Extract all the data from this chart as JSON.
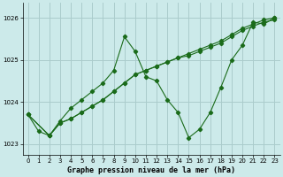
{
  "background_color": "#cceaea",
  "grid_color": "#aacccc",
  "line_color": "#1a6b1a",
  "title": "Graphe pression niveau de la mer (hPa)",
  "xlim": [
    -0.5,
    23.5
  ],
  "ylim": [
    1022.75,
    1026.35
  ],
  "yticks": [
    1023,
    1024,
    1025,
    1026
  ],
  "xticks": [
    0,
    1,
    2,
    3,
    4,
    5,
    6,
    7,
    8,
    9,
    10,
    11,
    12,
    13,
    14,
    15,
    16,
    17,
    18,
    19,
    20,
    21,
    22,
    23
  ],
  "series_zigzag_x": [
    0,
    1,
    2,
    3,
    4,
    5,
    6,
    7,
    8,
    9,
    10,
    11,
    12,
    13,
    14,
    15,
    16,
    17,
    18,
    19,
    20,
    21,
    22,
    23
  ],
  "series_zigzag_y": [
    1023.7,
    1023.3,
    1023.2,
    1023.55,
    1023.85,
    1024.05,
    1024.25,
    1024.45,
    1024.75,
    1025.55,
    1025.2,
    1024.6,
    1024.5,
    1024.05,
    1023.75,
    1023.15,
    1023.35,
    1023.75,
    1024.35,
    1025.0,
    1025.35,
    1025.9,
    1025.85,
    1026.0
  ],
  "series_line1_x": [
    0,
    2,
    3,
    4,
    5,
    6,
    7,
    8,
    9,
    10,
    11,
    12,
    13,
    14,
    15,
    16,
    17,
    18,
    19,
    20,
    21,
    22,
    23
  ],
  "series_line1_y": [
    1023.7,
    1023.2,
    1023.5,
    1023.6,
    1023.75,
    1023.9,
    1024.05,
    1024.25,
    1024.45,
    1024.65,
    1024.75,
    1024.85,
    1024.95,
    1025.05,
    1025.15,
    1025.25,
    1025.35,
    1025.45,
    1025.6,
    1025.75,
    1025.85,
    1025.95,
    1026.0
  ],
  "series_line2_x": [
    0,
    2,
    3,
    4,
    5,
    6,
    7,
    8,
    9,
    10,
    11,
    12,
    13,
    14,
    15,
    16,
    17,
    18,
    19,
    20,
    21,
    22,
    23
  ],
  "series_line2_y": [
    1023.7,
    1023.2,
    1023.5,
    1023.6,
    1023.75,
    1023.9,
    1024.05,
    1024.25,
    1024.45,
    1024.65,
    1024.75,
    1024.85,
    1024.95,
    1025.05,
    1025.1,
    1025.2,
    1025.3,
    1025.4,
    1025.55,
    1025.7,
    1025.8,
    1025.9,
    1025.95
  ]
}
